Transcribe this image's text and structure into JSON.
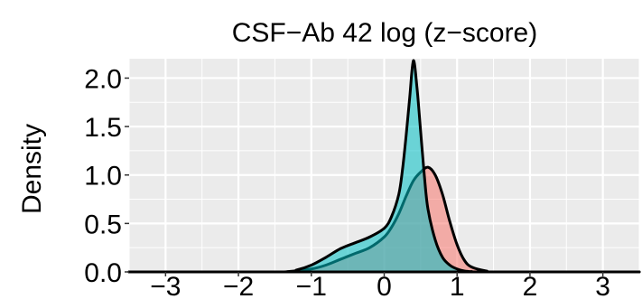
{
  "chart_data": {
    "type": "area",
    "title": "CSF−Ab 42 log (z−score)",
    "xlabel": "",
    "ylabel": "Density",
    "xlim": [
      -3.5,
      3.5
    ],
    "ylim": [
      0,
      2.2
    ],
    "x_ticks": [
      -3,
      -2,
      -1,
      0,
      1,
      2,
      3
    ],
    "x_tick_labels": [
      "−3",
      "−2",
      "−1",
      "0",
      "1",
      "2",
      "3"
    ],
    "y_ticks": [
      0,
      0.5,
      1,
      1.5,
      2
    ],
    "y_tick_labels": [
      "0.0",
      "0.5",
      "1.0",
      "1.5",
      "2.0"
    ],
    "grid": true,
    "background": "#ebebeb",
    "series": [
      {
        "color": "#f8766d",
        "x": [
          -3.5,
          -1.6,
          -1.3,
          -1.0,
          -0.8,
          -0.6,
          -0.4,
          -0.2,
          0.0,
          0.1,
          0.2,
          0.3,
          0.4,
          0.5,
          0.6,
          0.7,
          0.8,
          0.9,
          1.0,
          1.1,
          1.2,
          1.4,
          1.6,
          3.5
        ],
        "y": [
          0,
          0,
          0.005,
          0.03,
          0.07,
          0.13,
          0.19,
          0.25,
          0.36,
          0.46,
          0.6,
          0.78,
          0.94,
          1.03,
          1.08,
          1.0,
          0.8,
          0.52,
          0.28,
          0.12,
          0.05,
          0.01,
          0,
          0
        ]
      },
      {
        "color": "#00bfc4",
        "x": [
          -3.5,
          -1.4,
          -1.2,
          -1.0,
          -0.8,
          -0.6,
          -0.4,
          -0.2,
          0.0,
          0.1,
          0.2,
          0.25,
          0.3,
          0.35,
          0.4,
          0.45,
          0.5,
          0.55,
          0.6,
          0.7,
          0.8,
          0.9,
          1.0,
          1.1,
          1.2,
          1.4,
          3.5
        ],
        "y": [
          0,
          0,
          0.02,
          0.07,
          0.15,
          0.24,
          0.3,
          0.36,
          0.45,
          0.57,
          0.8,
          1.05,
          1.4,
          1.8,
          2.18,
          1.9,
          1.45,
          1.0,
          0.65,
          0.33,
          0.15,
          0.07,
          0.03,
          0.01,
          0.003,
          0,
          0
        ]
      }
    ]
  }
}
